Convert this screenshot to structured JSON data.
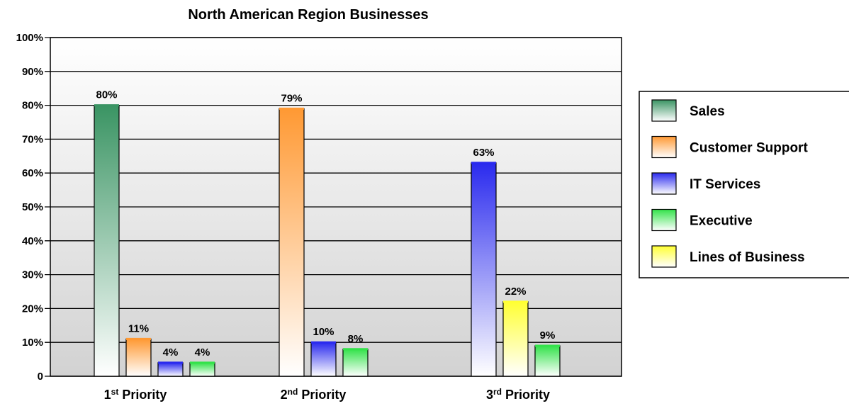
{
  "chart_data": {
    "type": "bar",
    "title": "North American Region Businesses",
    "xlabel": "",
    "ylabel": "",
    "ylim": [
      0,
      100
    ],
    "y_ticks": [
      "0",
      "10%",
      "20%",
      "30%",
      "40%",
      "50%",
      "60%",
      "70%",
      "80%",
      "90%",
      "100%"
    ],
    "grid": true,
    "legend_position": "right",
    "groups": [
      {
        "label": "1",
        "label_sup": "st",
        "label_suffix": " Priority",
        "bars": [
          {
            "series": "Sales",
            "value": 80,
            "label": "80%"
          },
          {
            "series": "Customer Support",
            "value": 11,
            "label": "11%"
          },
          {
            "series": "IT Services",
            "value": 4,
            "label": "4%"
          },
          {
            "series": "Executive",
            "value": 4,
            "label": "4%"
          }
        ]
      },
      {
        "label": "2",
        "label_sup": "nd",
        "label_suffix": " Priority",
        "bars": [
          {
            "series": "Customer Support",
            "value": 79,
            "label": "79%"
          },
          {
            "series": "IT Services",
            "value": 10,
            "label": "10%"
          },
          {
            "series": "Executive",
            "value": 8,
            "label": "8%"
          }
        ]
      },
      {
        "label": "3",
        "label_sup": "rd",
        "label_suffix": " Priority",
        "bars": [
          {
            "series": "IT Services",
            "value": 63,
            "label": "63%"
          },
          {
            "series": "Lines of Business",
            "value": 22,
            "label": "22%"
          },
          {
            "series": "Executive",
            "value": 9,
            "label": "9%"
          }
        ]
      }
    ],
    "series": [
      {
        "name": "Sales",
        "color": "#3a9463"
      },
      {
        "name": "Customer Support",
        "color": "#ff9933"
      },
      {
        "name": "IT Services",
        "color": "#2a2aee"
      },
      {
        "name": "Executive",
        "color": "#33e24a"
      },
      {
        "name": "Lines of Business",
        "color": "#ffff33"
      }
    ]
  }
}
